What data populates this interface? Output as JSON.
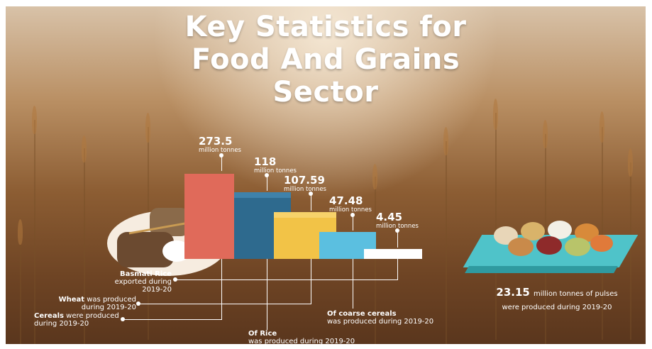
{
  "title": {
    "line1": "Key Statistics for",
    "line2": "Food And Grains",
    "line3": "Sector"
  },
  "chart_data": {
    "type": "bar",
    "categories": [
      "Cereals",
      "Of Rice",
      "Wheat",
      "Of coarse cereals",
      "Basmati Rice"
    ],
    "values": [
      273.5,
      118,
      107.59,
      47.48,
      4.45
    ],
    "unit": "million tonnes",
    "colors": [
      "#e06a5a",
      "#2e6a8e",
      "#f2c347",
      "#5bbfe0",
      "#ffffff"
    ]
  },
  "bars": [
    {
      "value": "273.5",
      "unit": "million tonnes"
    },
    {
      "value": "118",
      "unit": "million tonnes"
    },
    {
      "value": "107.59",
      "unit": "million tonnes"
    },
    {
      "value": "47.48",
      "unit": "million tonnes"
    },
    {
      "value": "4.45",
      "unit": "million tonnes"
    }
  ],
  "descriptions": {
    "basmati_bold": "Basmati Rice",
    "basmati_rest": "exported during 2019-20",
    "wheat_bold": "Wheat",
    "wheat_rest1": "was produced",
    "wheat_rest2": "during 2019-20",
    "cereals_bold": "Cereals",
    "cereals_rest1": "were produced",
    "cereals_rest2": "during 2019-20",
    "rice_bold": "Of Rice",
    "rice_rest": "was produced during 2019-20",
    "coarse_bold": "Of coarse cereals",
    "coarse_rest": "was produced during 2019-20"
  },
  "pulses": {
    "value": "23.15",
    "text1": "million tonnes of pulses",
    "text2": "were produced during 2019-20"
  },
  "icons": {
    "grain_sacks": "grain-sacks-illustration",
    "pulses": "pulses-platform-illustration"
  }
}
